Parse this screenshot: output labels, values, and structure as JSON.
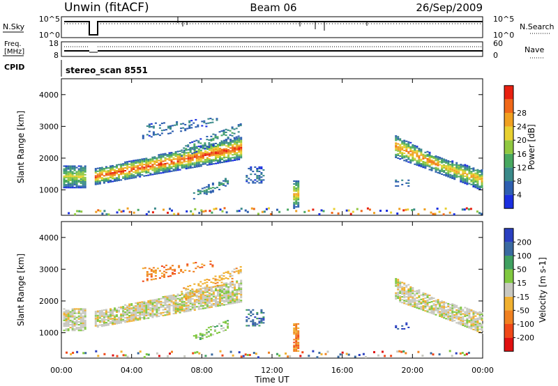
{
  "header": {
    "radar": "Unwin (fitACF)",
    "beam": "Beam 06",
    "date": "26/Sep/2009"
  },
  "strip_labels": {
    "nsky": "N.Sky",
    "nsky_ticks": [
      "10^5",
      "10^0"
    ],
    "nsearch": "N.Search",
    "nsearch_ticks": [
      "10^5",
      "10^0"
    ],
    "freq": "Freq.",
    "freq_unit": "[MHz]",
    "freq_ticks": [
      "18",
      "8"
    ],
    "nave": "Nave",
    "nave_ticks": [
      "60",
      "0"
    ],
    "cpid": "CPID",
    "cpid_value": "stereo_scan 8551"
  },
  "chart_data": [
    {
      "type": "heatmap",
      "name": "power",
      "ylabel": "Slant Range [km]",
      "ylim": [
        200,
        4500
      ],
      "yticks": [
        "1000",
        "2000",
        "3000",
        "4000"
      ],
      "colorbar_label": "Power [dB]",
      "colorbar_ticks": [
        "4",
        "8",
        "12",
        "16",
        "20",
        "24",
        "28"
      ],
      "colors": [
        "#1a2fe0",
        "#2e5fb0",
        "#3a8a8a",
        "#48a860",
        "#90c840",
        "#e8d030",
        "#f0a020",
        "#f06818",
        "#e82010"
      ]
    },
    {
      "type": "heatmap",
      "name": "velocity",
      "ylabel": "Slant Range [km]",
      "ylim": [
        200,
        4500
      ],
      "yticks": [
        "1000",
        "2000",
        "3000",
        "4000"
      ],
      "xlabel": "Time UT",
      "xticks": [
        "00:00",
        "04:00",
        "08:00",
        "12:00",
        "16:00",
        "20:00",
        "00:00"
      ],
      "colorbar_label": "Velocity [m s-1]",
      "colorbar_ticks": [
        "200",
        "100",
        "50",
        "15",
        "-15",
        "-50",
        "-100",
        "-200"
      ],
      "colors": [
        "#2a3fc0",
        "#3a6aa0",
        "#40a060",
        "#80c840",
        "#c8c8c0",
        "#f0b030",
        "#f08020",
        "#f04818",
        "#e01010"
      ]
    }
  ]
}
